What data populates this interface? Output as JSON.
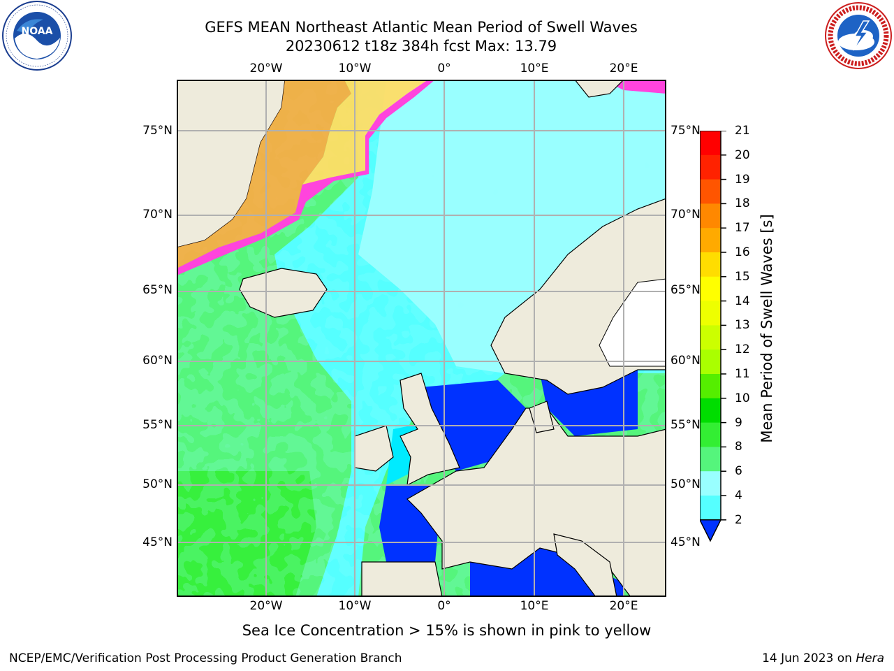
{
  "title": {
    "line1": "GEFS MEAN Northeast Atlantic Mean Period of Swell Waves",
    "line2": "20230612 t18z 384h fcst   Max: 13.79"
  },
  "logos": {
    "left": {
      "icon": "noaa-logo-icon",
      "text": "NOAA"
    },
    "right": {
      "icon": "nws-logo-icon"
    }
  },
  "map": {
    "lon_ticks": [
      "20°W",
      "10°W",
      "0°",
      "10°E",
      "20°E"
    ],
    "lat_ticks": [
      "75°N",
      "70°N",
      "65°N",
      "60°N",
      "55°N",
      "50°N",
      "45°N"
    ],
    "land_color": "#eeebdc",
    "ice_note": "Sea Ice Concentration > 15% is shown in pink to yellow"
  },
  "colorbar": {
    "label": "Mean Period of Swell Waves [s]",
    "ticks": [
      "21",
      "20",
      "19",
      "18",
      "17",
      "16",
      "15",
      "14",
      "13",
      "12",
      "11",
      "10",
      "9",
      "8",
      "6",
      "4",
      "2"
    ],
    "colors": [
      "#0032ff",
      "#00ebff",
      "#55ffff",
      "#99ffff",
      "#55f57c",
      "#33ee33",
      "#00dd00",
      "#55ee00",
      "#aaff00",
      "#ccff00",
      "#eeff00",
      "#ffff00",
      "#ffdd00",
      "#ffaa00",
      "#ff8800",
      "#ff5500",
      "#ff2200",
      "#ff0000"
    ]
  },
  "footer": {
    "left": "NCEP/EMC/Verification Post Processing Product Generation Branch",
    "date": "14 Jun 2023 on ",
    "machine": "Hera"
  }
}
